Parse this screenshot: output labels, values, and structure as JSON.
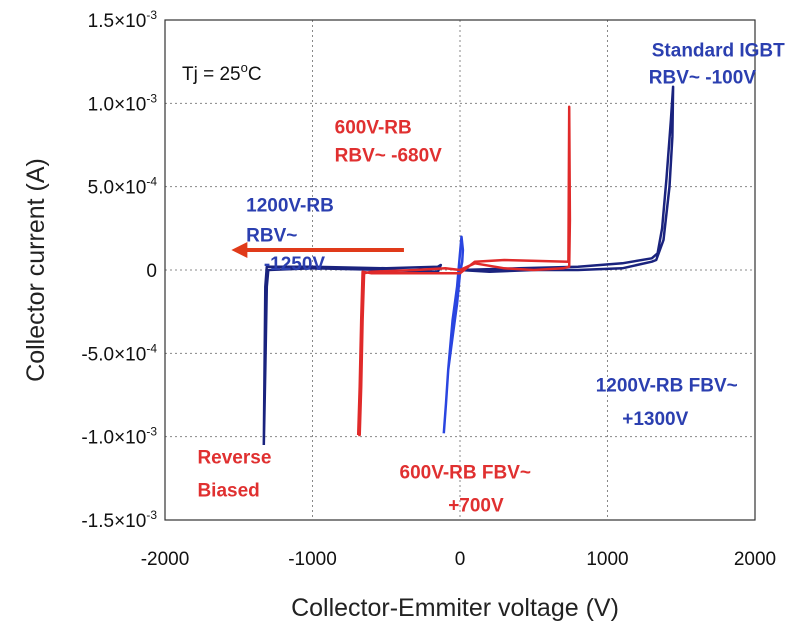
{
  "chart_data": {
    "type": "line",
    "xlabel": "Collector-Emmiter voltage (V)",
    "ylabel": "Collector current (A)",
    "xlim": [
      -2000,
      2000
    ],
    "ylim": [
      -0.0015,
      0.0015
    ],
    "grid": true,
    "x_ticks": [
      {
        "v": -2000,
        "label": "-2000"
      },
      {
        "v": -1000,
        "label": "-1000"
      },
      {
        "v": 0,
        "label": "0"
      },
      {
        "v": 1000,
        "label": "1000"
      },
      {
        "v": 2000,
        "label": "2000"
      }
    ],
    "y_ticks": [
      {
        "v": 0.0015,
        "mant": "1.5×10",
        "exp": "-3"
      },
      {
        "v": 0.001,
        "mant": "1.0×10",
        "exp": "-3"
      },
      {
        "v": 0.0005,
        "mant": "5.0×10",
        "exp": "-4"
      },
      {
        "v": 0,
        "mant": "0",
        "exp": ""
      },
      {
        "v": -0.0005,
        "mant": "-5.0×10",
        "exp": "-4"
      },
      {
        "v": -0.001,
        "mant": "-1.0×10",
        "exp": "-3"
      },
      {
        "v": -0.0015,
        "mant": "-1.5×10",
        "exp": "-3"
      }
    ],
    "series": [
      {
        "color": "#1a237e",
        "x": [
          -1330,
          -1320,
          -1310,
          -1300,
          -1000,
          -500,
          -150,
          -130,
          -150,
          -500,
          -1000,
          -1310,
          -1320,
          -1330
        ],
        "y": [
          -0.00105,
          -0.0006,
          -0.0001,
          0.0,
          1e-05,
          0.0,
          -1e-05,
          3e-05,
          2e-05,
          1e-05,
          2e-05,
          2e-05,
          -0.0001,
          -0.00105
        ]
      },
      {
        "color": "#1a237e",
        "x": [
          0,
          200,
          500,
          800,
          1100,
          1300,
          1330,
          1380,
          1420,
          1440,
          1445,
          1430,
          1400,
          1370,
          1340,
          1300,
          1100,
          800,
          400,
          0
        ],
        "y": [
          0.0,
          -1e-05,
          0.0,
          0.0,
          1e-05,
          5e-05,
          6e-05,
          0.00018,
          0.0005,
          0.0008,
          0.0011,
          0.0009,
          0.00055,
          0.00025,
          0.0001,
          7e-05,
          4e-05,
          2e-05,
          1e-05,
          0.0
        ]
      },
      {
        "color": "#2a45e0",
        "x": [
          -110,
          -95,
          -80,
          -50,
          -20,
          0,
          10,
          20,
          15,
          0,
          -20,
          -50,
          -80,
          -95,
          -110
        ],
        "y": [
          -0.00098,
          -0.0008,
          -0.0006,
          -0.0003,
          -0.0001,
          0.0001,
          0.0002,
          0.00012,
          5e-05,
          -2e-05,
          -0.0002,
          -0.0004,
          -0.0006,
          -0.0008,
          -0.00098
        ]
      },
      {
        "color": "#e02a2a",
        "x": [
          -690,
          -680,
          -670,
          -660,
          -600,
          -300,
          0,
          100,
          300,
          735,
          740,
          745,
          740,
          700,
          500,
          300,
          100,
          0,
          -100,
          -300,
          -600,
          -650,
          -660,
          -670,
          -680,
          -690
        ],
        "y": [
          -0.00099,
          -0.0007,
          -0.0003,
          -1e-05,
          -2e-05,
          -2e-05,
          -2e-05,
          5e-05,
          6e-05,
          5e-05,
          0.00098,
          0.0003,
          2e-05,
          1e-05,
          0.0,
          1e-05,
          4e-05,
          0.0,
          1e-05,
          0.0,
          -1e-05,
          -2e-05,
          -0.0003,
          -0.0007,
          -0.00099,
          -0.00099
        ]
      }
    ],
    "annotations": [
      {
        "text": "Standard IGBT",
        "x": 1300,
        "y": 0.00128,
        "color": "#2b3fb0"
      },
      {
        "text": "RBV~ -100V",
        "x": 1280,
        "y": 0.00112,
        "color": "#2b3fb0"
      },
      {
        "text": "600V-RB",
        "x": -850,
        "y": 0.00082,
        "color": "#e03030"
      },
      {
        "text": "RBV~ -680V",
        "x": -850,
        "y": 0.00065,
        "color": "#e03030"
      },
      {
        "text": "1200V-RB",
        "x": -1450,
        "y": 0.00035,
        "color": "#2b3fb0"
      },
      {
        "text": "RBV~",
        "x": -1450,
        "y": 0.00017,
        "color": "#2b3fb0"
      },
      {
        "text": "-1250V",
        "x": -1330,
        "y": 0.0,
        "color": "#2b3fb0"
      },
      {
        "text": "1200V-RB FBV~",
        "x": 920,
        "y": -0.00073,
        "color": "#2b3fb0"
      },
      {
        "text": "+1300V",
        "x": 1100,
        "y": -0.00093,
        "color": "#2b3fb0"
      },
      {
        "text": "600V-RB FBV~",
        "x": -410,
        "y": -0.00125,
        "color": "#e03030"
      },
      {
        "text": "+700V",
        "x": -80,
        "y": -0.00145,
        "color": "#e03030"
      },
      {
        "text": "Reverse",
        "x": -1780,
        "y": -0.00116,
        "color": "#e03030"
      },
      {
        "text": "Biased",
        "x": -1780,
        "y": -0.00136,
        "color": "#e03030"
      }
    ],
    "tj_label": {
      "text": "Tj = 25",
      "sup": "o",
      "tail": "C"
    },
    "arrow": {
      "x_from": -380,
      "x_to": -1550,
      "y": 0.00012,
      "color": "#e03a1a"
    }
  }
}
